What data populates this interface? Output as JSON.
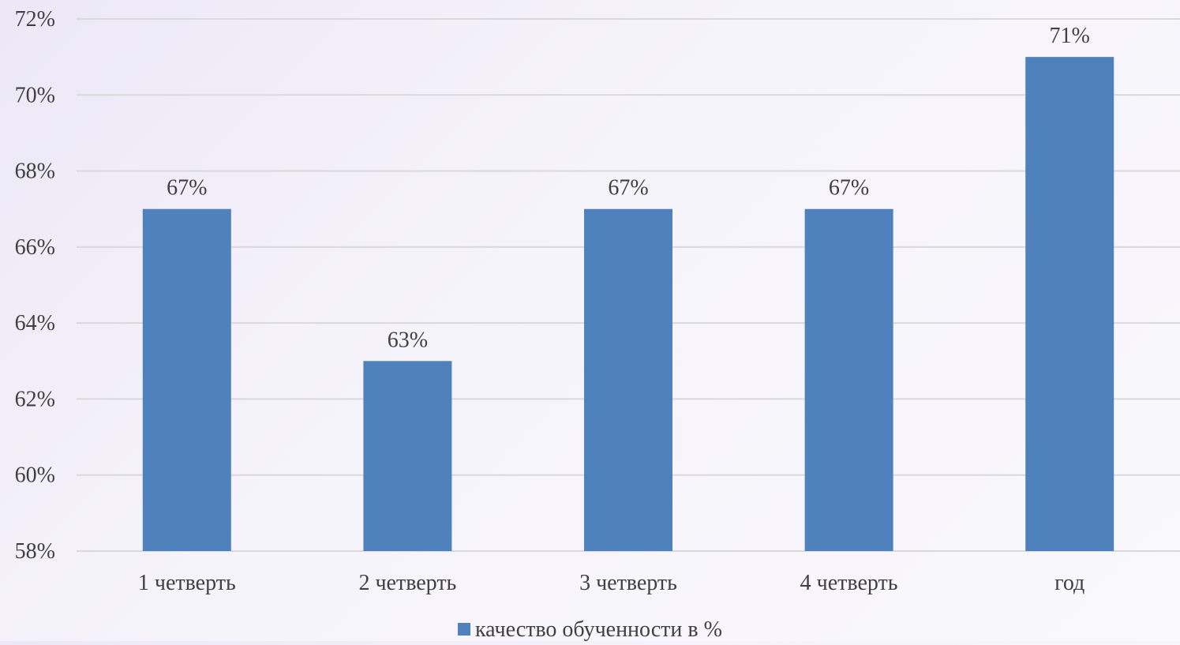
{
  "chart_data": {
    "type": "bar",
    "title": "",
    "xlabel": "",
    "ylabel": "",
    "categories": [
      "1 четверть",
      "2 четверть",
      "3 четверть",
      "4 четверть",
      "год"
    ],
    "series": [
      {
        "name": "качество обученности в %",
        "values": [
          67,
          63,
          67,
          67,
          71
        ],
        "data_labels": [
          "67%",
          "63%",
          "67%",
          "67%",
          "71%"
        ],
        "color": "#4f81bd"
      }
    ],
    "ylim": [
      58,
      72
    ],
    "yticks": [
      58,
      60,
      62,
      64,
      66,
      68,
      70,
      72
    ],
    "ytick_labels": [
      "58%",
      "60%",
      "62%",
      "64%",
      "66%",
      "68%",
      "70%",
      "72%"
    ],
    "grid": true,
    "gridline_color": "#d9d9d9",
    "legend_position": "bottom"
  }
}
